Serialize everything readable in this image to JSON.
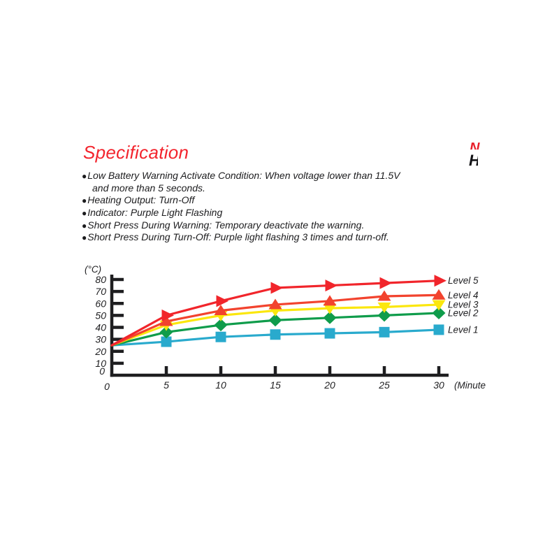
{
  "page": {
    "background": "#ffffff"
  },
  "header": {
    "title": "Specification",
    "title_color": "#f3242d",
    "cropped_red_glyph": "N",
    "cropped_black_glyph": "H"
  },
  "spec_list": {
    "items": [
      {
        "bullet": "●",
        "text": "Low Battery Warning Activate Condition: When voltage lower than 11.5V"
      },
      {
        "bullet": "",
        "text": "and more than 5 seconds."
      },
      {
        "bullet": "●",
        "text": "Heating Output: Turn-Off"
      },
      {
        "bullet": "●",
        "text": "Indicator: Purple Light Flashing"
      },
      {
        "bullet": "●",
        "text": "Short Press During Warning: Temporary deactivate the warning."
      },
      {
        "bullet": "●",
        "text": "Short Press During Turn-Off: Purple light flashing 3 times and turn-off."
      }
    ]
  },
  "chart_data": {
    "type": "line",
    "title": "",
    "ylabel": "(°C)",
    "xlabel": "(Minute",
    "x": [
      0,
      5,
      10,
      15,
      20,
      25,
      30
    ],
    "x_ticks": [
      0,
      5,
      10,
      15,
      20,
      25,
      30
    ],
    "y_ticks": [
      0,
      10,
      20,
      30,
      40,
      50,
      60,
      70,
      80
    ],
    "xlim": [
      0,
      31
    ],
    "ylim": [
      0,
      80
    ],
    "grid": false,
    "legend_position": "right",
    "axis_color": "#1e1e20",
    "series": [
      {
        "name": "Level 5",
        "color": "#f1252b",
        "marker": "triangle-right",
        "values": [
          25,
          50,
          62,
          73,
          75,
          77,
          79
        ]
      },
      {
        "name": "Level 4",
        "color": "#f2432e",
        "marker": "triangle-up",
        "values": [
          25,
          45,
          54,
          59,
          62,
          66,
          67
        ]
      },
      {
        "name": "Level 3",
        "color": "#fbe70d",
        "marker": "triangle-down",
        "values": [
          25,
          42,
          50,
          54,
          56,
          57,
          59
        ]
      },
      {
        "name": "Level 2",
        "color": "#0f9c4b",
        "marker": "diamond",
        "values": [
          25,
          36,
          42,
          46,
          48,
          50,
          52
        ]
      },
      {
        "name": "Level 1",
        "color": "#29aacd",
        "marker": "square",
        "values": [
          25,
          28,
          32,
          34,
          35,
          36,
          38
        ]
      }
    ]
  }
}
